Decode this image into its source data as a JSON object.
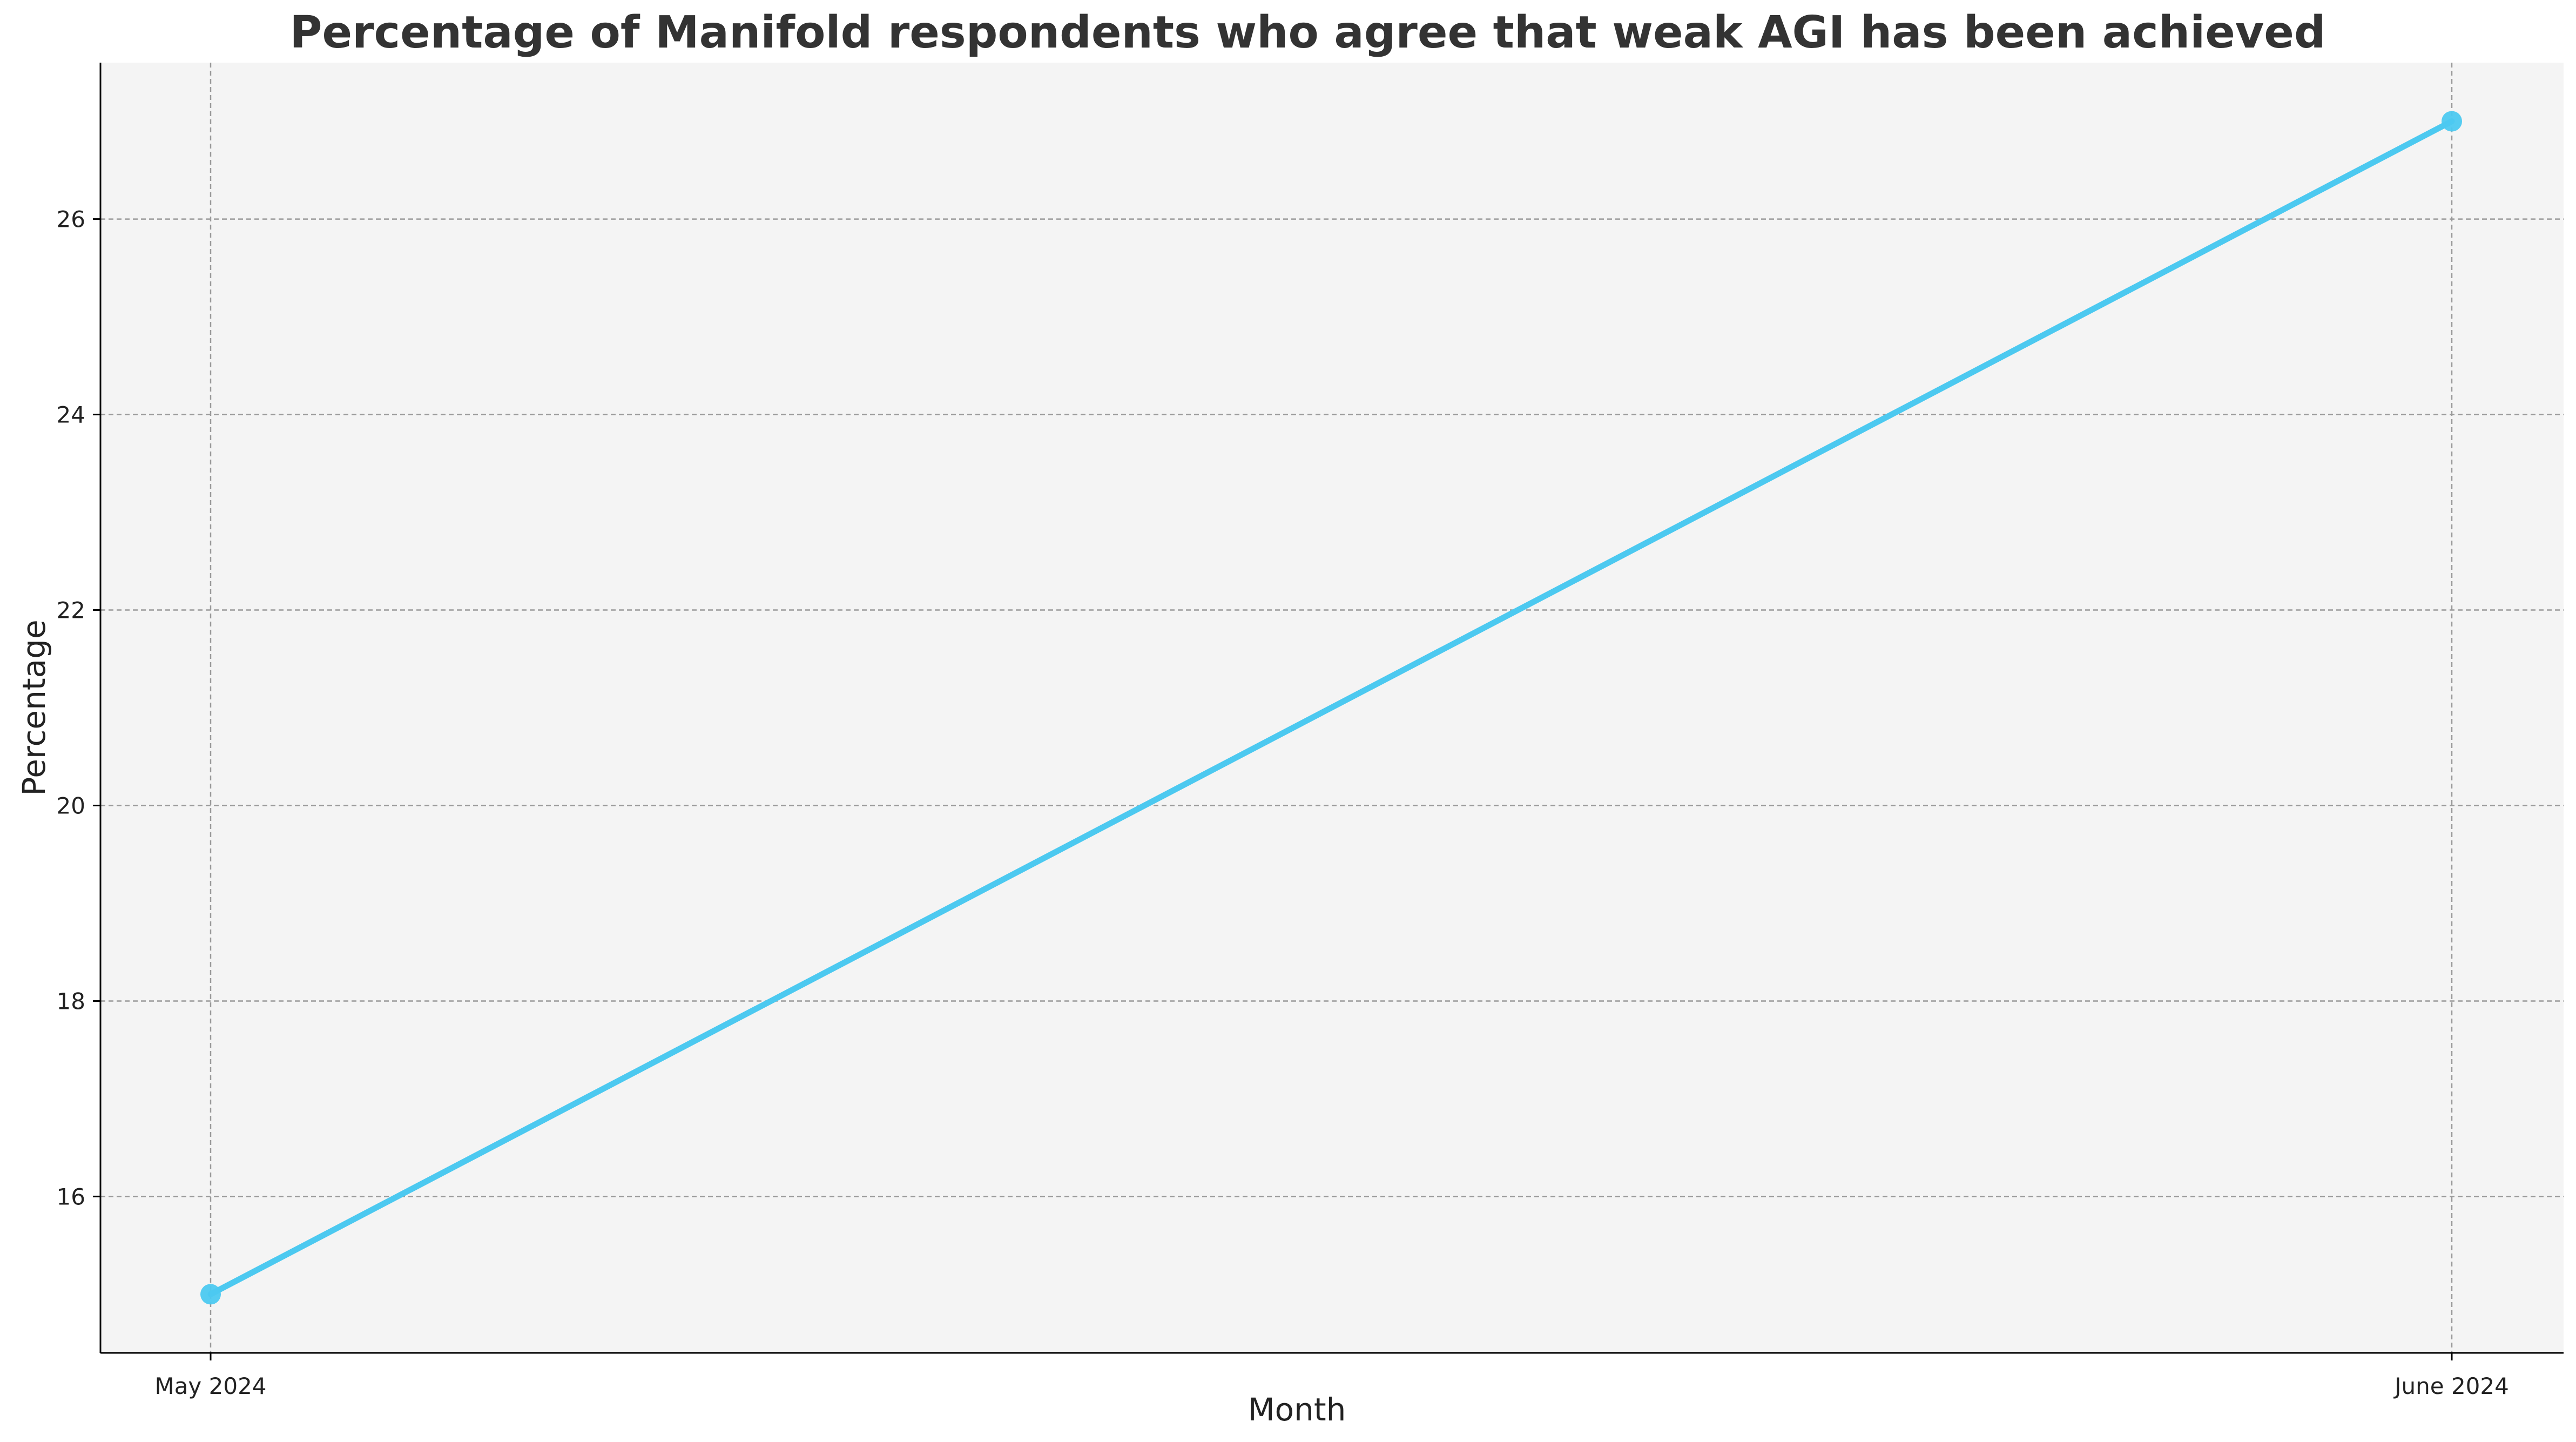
{
  "chart_data": {
    "type": "line",
    "title": "Percentage of Manifold respondents who agree that weak AGI has been achieved",
    "xlabel": "Month",
    "ylabel": "Percentage",
    "categories": [
      "May 2024",
      "June 2024"
    ],
    "series": [
      {
        "values": [
          15,
          27
        ],
        "color": "#4cc9f0"
      }
    ],
    "yticks": [
      16,
      18,
      20,
      22,
      24,
      26
    ],
    "ylim": [
      14.4,
      27.6
    ],
    "grid": true,
    "grid_style": "dashed",
    "plot_background": "#f4f4f4",
    "marker": "circle"
  }
}
